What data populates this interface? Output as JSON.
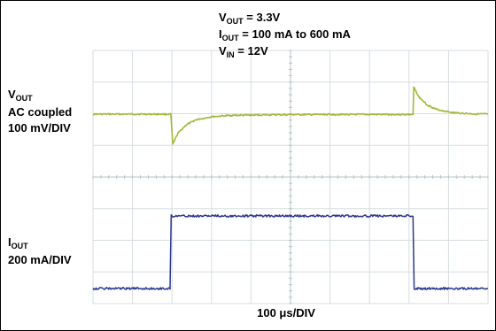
{
  "chart_data": {
    "type": "line",
    "title_lines": [
      {
        "main": "V",
        "sub": "OUT",
        "rest": " = 3.3V"
      },
      {
        "main": "I",
        "sub": "OUT",
        "rest": " = 100 mA to 600 mA"
      },
      {
        "main": "V",
        "sub": "IN",
        "rest": " = 12V"
      }
    ],
    "xlabel": "100 μs/DIV",
    "channels": [
      {
        "label_main": "V",
        "label_sub": "OUT",
        "label_lines": [
          "AC coupled",
          "100 mV/DIV"
        ],
        "color": "#a7b53a",
        "unit": "div",
        "points": [
          [
            0,
            0
          ],
          [
            1.97,
            0
          ],
          [
            2.02,
            -0.95
          ],
          [
            2.15,
            -0.6
          ],
          [
            2.35,
            -0.35
          ],
          [
            2.6,
            -0.18
          ],
          [
            3,
            -0.08
          ],
          [
            3.5,
            -0.04
          ],
          [
            4.5,
            -0.02
          ],
          [
            6,
            -0.01
          ],
          [
            8.1,
            -0.01
          ],
          [
            8.12,
            0.85
          ],
          [
            8.25,
            0.55
          ],
          [
            8.45,
            0.3
          ],
          [
            8.7,
            0.15
          ],
          [
            9.1,
            0.05
          ],
          [
            9.6,
            0.01
          ],
          [
            10,
            0
          ]
        ]
      },
      {
        "label_main": "I",
        "label_sub": "OUT",
        "label_lines": [
          "200 mA/DIV"
        ],
        "color": "#2b3990",
        "unit": "mA",
        "points": [
          [
            0,
            100
          ],
          [
            1.95,
            100
          ],
          [
            1.98,
            600
          ],
          [
            8.1,
            600
          ],
          [
            8.13,
            100
          ],
          [
            10,
            100
          ]
        ]
      }
    ],
    "grid": true,
    "divisions": {
      "x": 10,
      "y": 8
    }
  }
}
